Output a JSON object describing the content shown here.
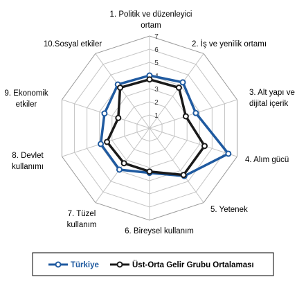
{
  "chart_data": {
    "type": "radar",
    "categories": [
      [
        "1. Politik ve düzenleyici",
        "ortam"
      ],
      [
        "2. İş ve yenilik ortamı"
      ],
      [
        "3. Alt yapı ve",
        "dijital içerik"
      ],
      [
        "4. Alım gücü"
      ],
      [
        "5. Yetenek"
      ],
      [
        "6. Bireysel kullanım"
      ],
      [
        "7. Tüzel",
        "kullanım"
      ],
      [
        "8. Devlet",
        "kullanımı"
      ],
      [
        "9. Ekonomik",
        "etkiler"
      ],
      [
        "10.Sosyal etkiler"
      ]
    ],
    "ticks": [
      "1",
      "2",
      "3",
      "4",
      "5",
      "6",
      "7"
    ],
    "rmin": 0,
    "rmax": 7,
    "grid": true,
    "series": [
      {
        "name": "Türkiye",
        "color": "#1f5aa0",
        "values": [
          4.0,
          4.3,
          3.7,
          6.3,
          4.5,
          3.4,
          3.9,
          3.9,
          3.6,
          4.1
        ]
      },
      {
        "name": "Üst-Orta Gelir Grubu Ortalaması",
        "color": "#1a1a1a",
        "values": [
          3.7,
          3.8,
          2.9,
          4.4,
          4.4,
          3.3,
          3.3,
          3.4,
          2.5,
          3.8
        ]
      }
    ],
    "legend_position": "bottom"
  }
}
